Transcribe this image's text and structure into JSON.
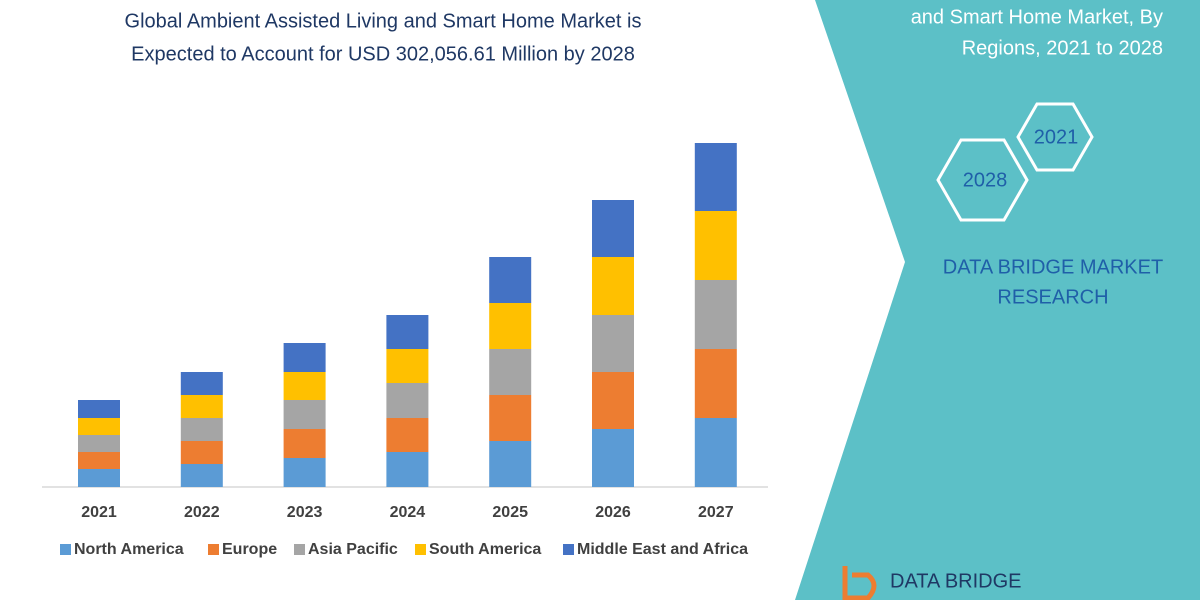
{
  "chart_data": {
    "type": "stacked-bar",
    "title": [
      "Global Ambient Assisted Living and Smart Home Market is",
      "Expected to Account for USD 302,056.61 Million by 2028"
    ],
    "categories": [
      "2021",
      "2022",
      "2023",
      "2024",
      "2025",
      "2026",
      "2027"
    ],
    "series": [
      {
        "name": "North America",
        "color": "#5b9bd5",
        "values": [
          18,
          23,
          29,
          35,
          46,
          58,
          69
        ]
      },
      {
        "name": "Europe",
        "color": "#ed7d31",
        "values": [
          17,
          23,
          29,
          34,
          46,
          57,
          69
        ]
      },
      {
        "name": "Asia Pacific",
        "color": "#a5a5a5",
        "values": [
          17,
          23,
          29,
          35,
          46,
          57,
          69
        ]
      },
      {
        "name": "South America",
        "color": "#ffc000",
        "values": [
          17,
          23,
          28,
          34,
          46,
          58,
          69
        ]
      },
      {
        "name": "Middle East and Africa",
        "color": "#4472c4",
        "values": [
          18,
          23,
          29,
          34,
          46,
          57,
          68
        ]
      }
    ]
  },
  "panel": {
    "heading": [
      "and Smart Home Market, By",
      "Regions, 2021 to 2028"
    ],
    "hexagons": [
      "2021",
      "2028"
    ],
    "brand": [
      "DATA BRIDGE MARKET",
      "RESEARCH"
    ],
    "logo": "DATA BRIDGE"
  }
}
